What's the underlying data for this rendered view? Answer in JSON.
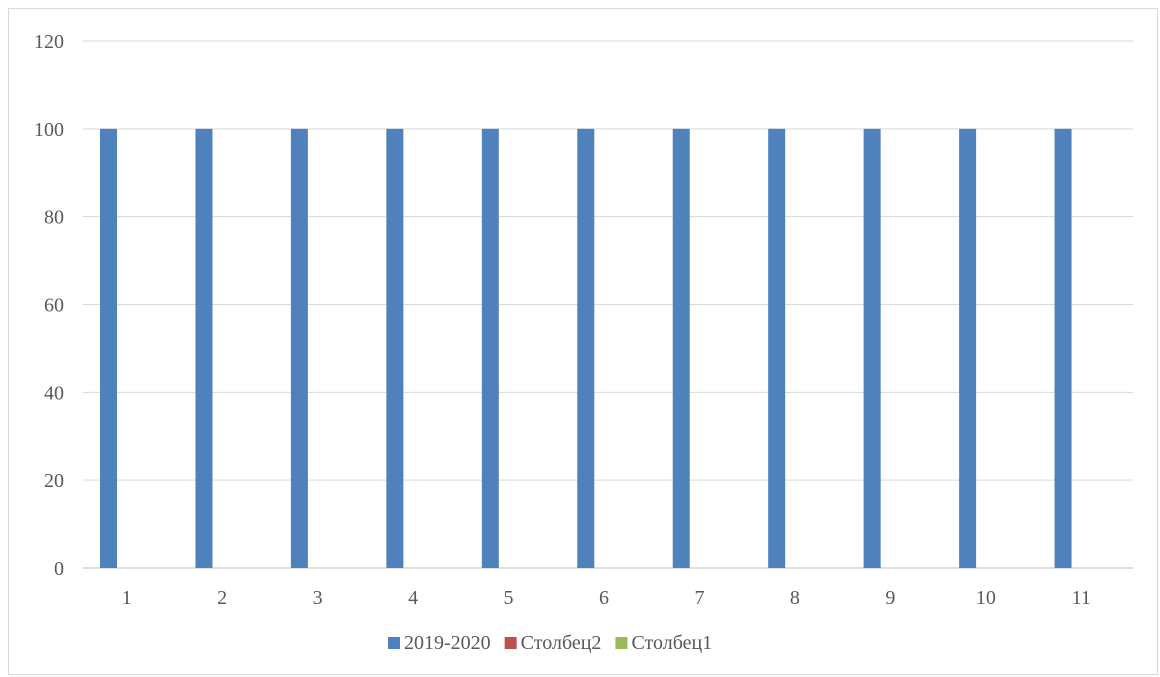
{
  "chart_data": {
    "type": "bar",
    "categories": [
      "1",
      "2",
      "3",
      "4",
      "5",
      "6",
      "7",
      "8",
      "9",
      "10",
      "11"
    ],
    "series": [
      {
        "name": "2019-2020",
        "values": [
          100,
          100,
          100,
          100,
          100,
          100,
          100,
          100,
          100,
          100,
          100
        ],
        "color": "#4f81bd"
      },
      {
        "name": "Столбец2",
        "values": [
          0,
          0,
          0,
          0,
          0,
          0,
          0,
          0,
          0,
          0,
          0
        ],
        "color": "#c0504d"
      },
      {
        "name": "Столбец1",
        "values": [
          0,
          0,
          0,
          0,
          0,
          0,
          0,
          0,
          0,
          0,
          0
        ],
        "color": "#9bbb59"
      }
    ],
    "yticks": [
      "0",
      "20",
      "40",
      "60",
      "80",
      "100",
      "120"
    ],
    "ylim": [
      0,
      120
    ],
    "grid": true,
    "legend_position": "bottom",
    "title": "",
    "xlabel": "",
    "ylabel": ""
  }
}
